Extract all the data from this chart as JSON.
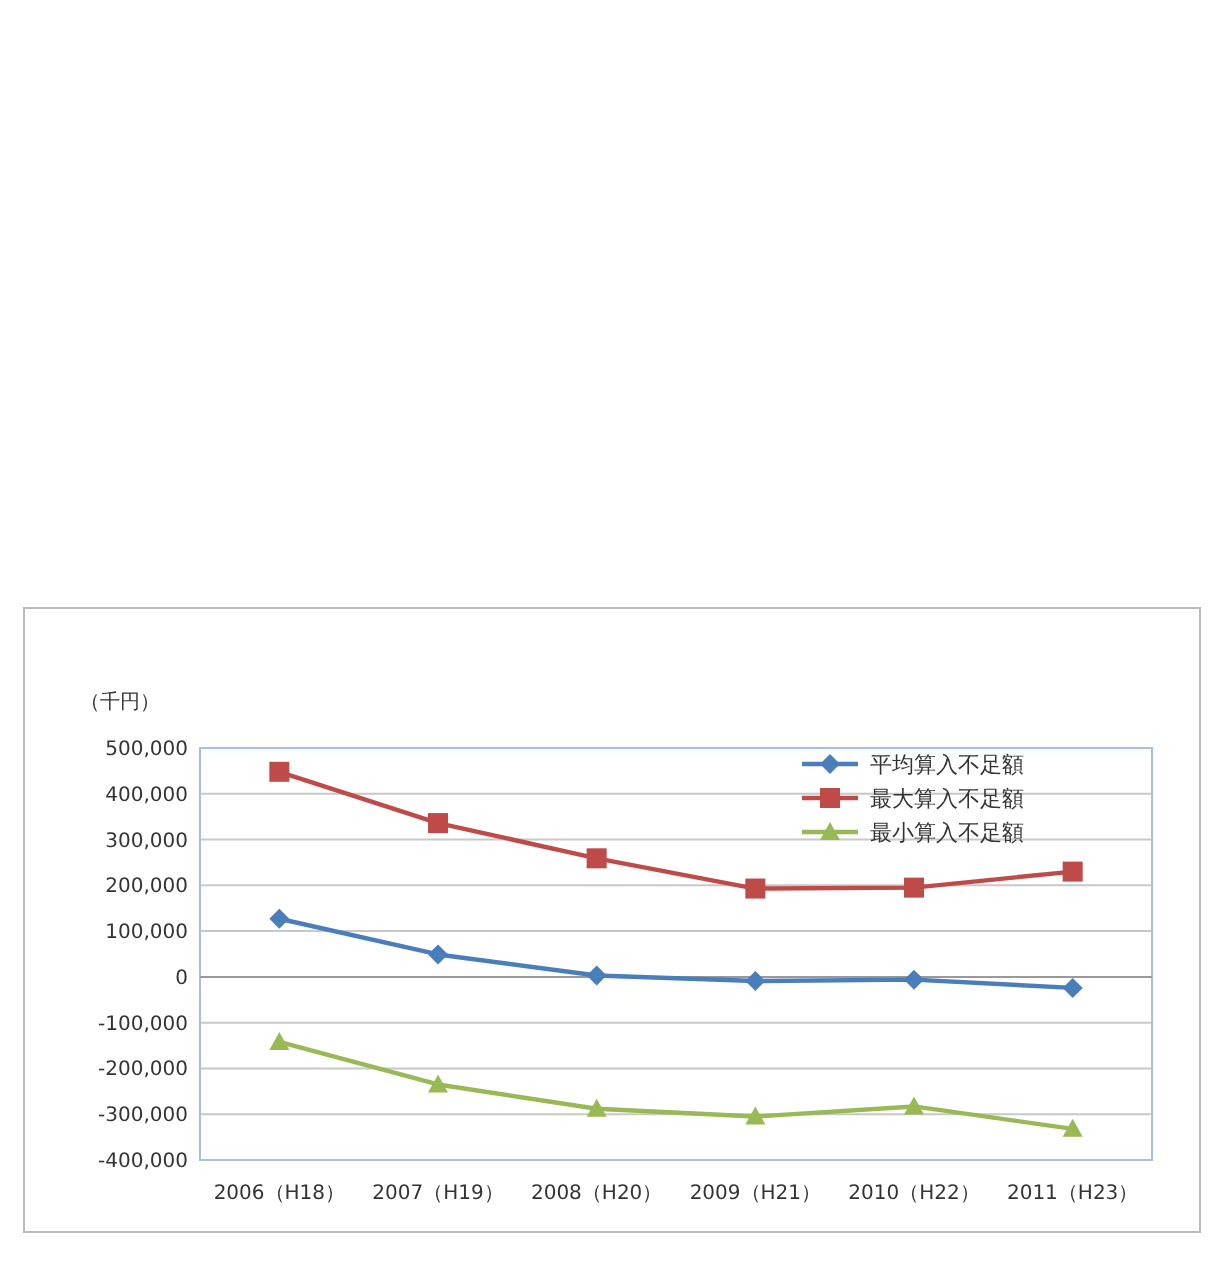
{
  "chart_data": {
    "type": "line",
    "ylabel": "（千円）",
    "categories": [
      "2006（H18）",
      "2007（H19）",
      "2008（H20）",
      "2009（H21）",
      "2010（H22）",
      "2011（H23）"
    ],
    "series": [
      {
        "name": "平均算入不足額",
        "color": "#4a7ebb",
        "marker": "diamond",
        "values": [
          127000,
          49000,
          3000,
          -9000,
          -6000,
          -24000
        ]
      },
      {
        "name": "最大算入不足額",
        "color": "#be4b48",
        "marker": "square",
        "values": [
          448000,
          336000,
          259000,
          193000,
          195000,
          230000
        ]
      },
      {
        "name": "最小算入不足額",
        "color": "#98b954",
        "marker": "triangle",
        "values": [
          -142000,
          -235000,
          -288000,
          -305000,
          -283000,
          -332000
        ]
      }
    ],
    "ylim": [
      -400000,
      500000
    ],
    "yticks": [
      {
        "value": -400000,
        "label": "-400,000"
      },
      {
        "value": -300000,
        "label": "-300,000"
      },
      {
        "value": -200000,
        "label": "-200,000"
      },
      {
        "value": -100000,
        "label": "-100,000"
      },
      0,
      {
        "value": 100000,
        "label": "100,000"
      },
      {
        "value": 200000,
        "label": "200,000"
      },
      {
        "value": 300000,
        "label": "300,000"
      },
      {
        "value": 400000,
        "label": "400,000"
      },
      {
        "value": 500000,
        "label": "500,000"
      }
    ],
    "grid": "y",
    "legend": "top right",
    "line_style": "solid"
  }
}
